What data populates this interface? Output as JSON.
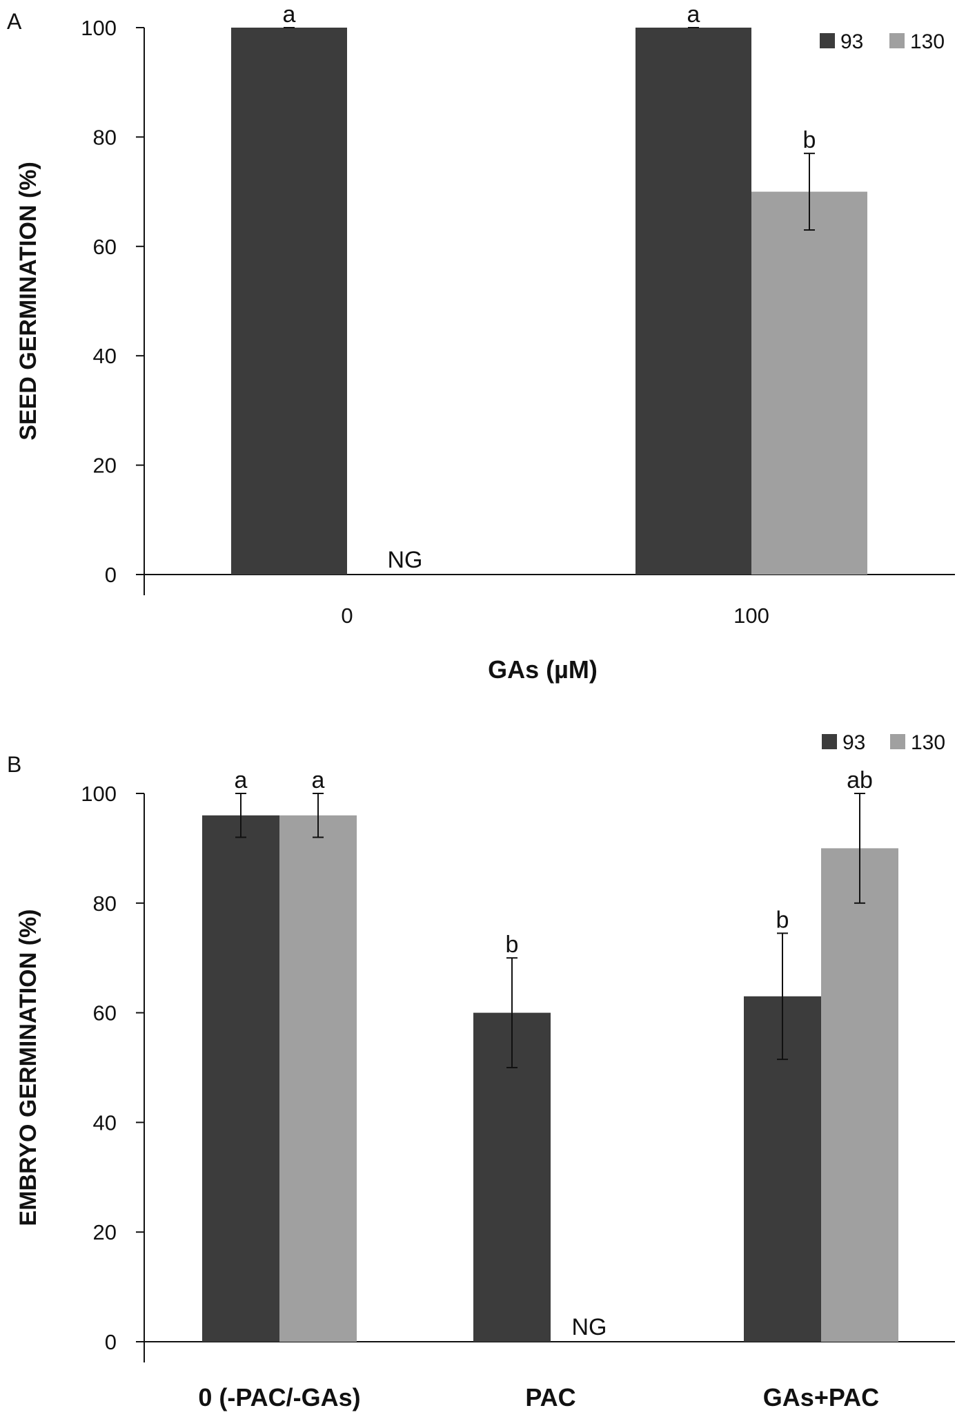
{
  "colors": {
    "93": "#3c3c3c",
    "130": "#a0a0a0"
  },
  "chart_data": [
    {
      "type": "bar",
      "panel_label": "A",
      "title": "",
      "xlabel": "GAs (µM)",
      "ylabel": "SEED GERMINATION (%)",
      "ylim": [
        0,
        100
      ],
      "yticks": [
        0,
        20,
        40,
        60,
        80,
        100
      ],
      "grid": false,
      "legend": "top-right",
      "categories": [
        "0",
        "100"
      ],
      "category_label_bold": false,
      "series": [
        {
          "name": "93",
          "values": [
            100,
            100
          ],
          "errors": [
            0,
            0
          ],
          "letters": [
            "a",
            "a"
          ]
        },
        {
          "name": "130",
          "values": [
            null,
            70
          ],
          "errors": [
            null,
            7
          ],
          "letters": [
            "NG",
            "b"
          ]
        }
      ]
    },
    {
      "type": "bar",
      "panel_label": "B",
      "title": "",
      "xlabel": "",
      "ylabel": "EMBRYO GERMINATION (%)",
      "ylim": [
        0,
        100
      ],
      "yticks": [
        0,
        20,
        40,
        60,
        80,
        100
      ],
      "grid": false,
      "legend": "top-right",
      "categories": [
        "0 (-PAC/-GAs)",
        "PAC",
        "GAs+PAC"
      ],
      "category_label_bold": true,
      "series": [
        {
          "name": "93",
          "values": [
            96,
            60,
            63
          ],
          "errors": [
            4,
            10,
            11.5
          ],
          "letters": [
            "a",
            "b",
            "b"
          ]
        },
        {
          "name": "130",
          "values": [
            96,
            null,
            90
          ],
          "errors": [
            4,
            null,
            10
          ],
          "letters": [
            "a",
            "NG",
            "ab"
          ]
        }
      ]
    }
  ]
}
